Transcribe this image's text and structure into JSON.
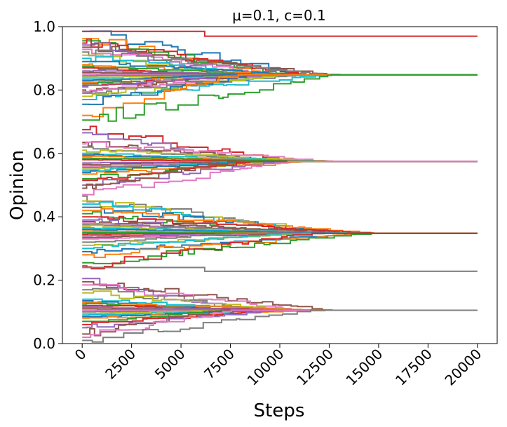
{
  "chart_data": {
    "type": "line",
    "title": "μ=0.1, c=0.1",
    "xlabel": "Steps",
    "ylabel": "Opinion",
    "xlim": [
      -1000,
      21000
    ],
    "ylim": [
      0.0,
      1.0
    ],
    "xticks": [
      0,
      2500,
      5000,
      7500,
      10000,
      12500,
      15000,
      17500,
      20000
    ],
    "xtick_labels": [
      "0",
      "2500",
      "5000",
      "7500",
      "10000",
      "12500",
      "15000",
      "17500",
      "20000"
    ],
    "yticks": [
      0.0,
      0.2,
      0.4,
      0.6,
      0.8,
      1.0
    ],
    "ytick_labels": [
      "0.0",
      "0.2",
      "0.4",
      "0.6",
      "0.8",
      "1.0"
    ],
    "xtick_rotation": 45,
    "grid": false,
    "legend": "none",
    "palette": [
      "#1f77b4",
      "#ff7f0e",
      "#2ca02c",
      "#d62728",
      "#9467bd",
      "#8c564b",
      "#e377c2",
      "#7f7f7f",
      "#bcbd22",
      "#17becf"
    ],
    "clusters": [
      {
        "final": 0.848,
        "starts": [
          0.985,
          0.962,
          0.955,
          0.948,
          0.942,
          0.935,
          0.928,
          0.92,
          0.91,
          0.9,
          0.89,
          0.88,
          0.875,
          0.87,
          0.86,
          0.855,
          0.85,
          0.845,
          0.84,
          0.835,
          0.83,
          0.825,
          0.82,
          0.815,
          0.81,
          0.8,
          0.795,
          0.79,
          0.78,
          0.77,
          0.755,
          0.72,
          0.705
        ],
        "converge_end": 12500
      },
      {
        "final": 0.575,
        "starts": [
          0.675,
          0.665,
          0.635,
          0.63,
          0.62,
          0.61,
          0.6,
          0.595,
          0.59,
          0.585,
          0.58,
          0.57,
          0.565,
          0.56,
          0.555,
          0.55,
          0.545,
          0.54,
          0.535,
          0.52,
          0.515,
          0.5,
          0.49,
          0.47
        ],
        "converge_end": 12500
      },
      {
        "final": 0.348,
        "starts": [
          0.465,
          0.45,
          0.44,
          0.43,
          0.42,
          0.41,
          0.4,
          0.39,
          0.385,
          0.38,
          0.375,
          0.37,
          0.365,
          0.36,
          0.355,
          0.35,
          0.345,
          0.34,
          0.335,
          0.33,
          0.32,
          0.31,
          0.3,
          0.29,
          0.28,
          0.255,
          0.245
        ],
        "converge_end": 14000
      },
      {
        "final": 0.105,
        "starts": [
          0.205,
          0.195,
          0.185,
          0.17,
          0.16,
          0.14,
          0.135,
          0.13,
          0.125,
          0.12,
          0.115,
          0.11,
          0.105,
          0.1,
          0.095,
          0.09,
          0.085,
          0.08,
          0.07,
          0.06,
          0.05,
          0.03,
          0.02,
          0.01
        ],
        "converge_end": 12000
      }
    ],
    "isolated": [
      {
        "value": 0.97,
        "color": "#d62728",
        "from": 0.985
      },
      {
        "value": 0.228,
        "color": "#7f7f7f",
        "from": 0.24
      }
    ]
  }
}
